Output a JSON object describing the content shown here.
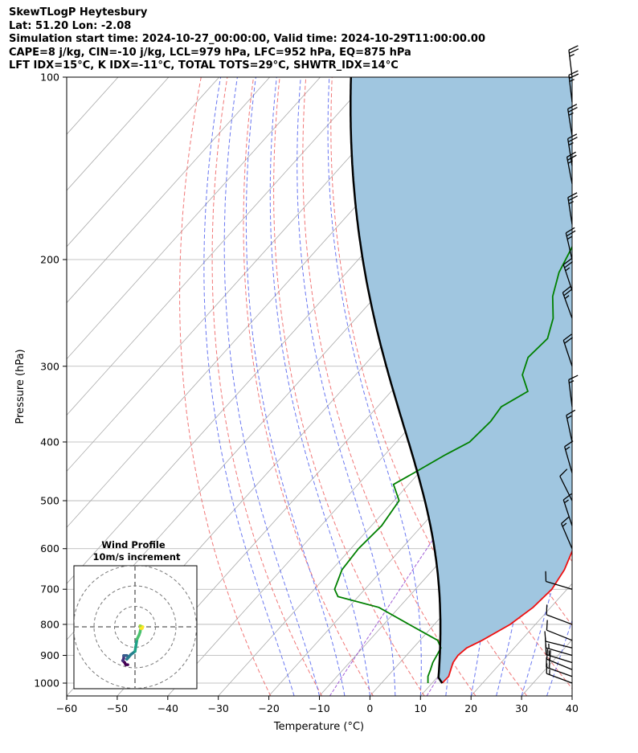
{
  "header": {
    "lines": [
      "SkewTLogP Heytesbury",
      "Lat: 51.20   Lon: -2.08",
      "Simulation start time: 2024-10-27_00:00:00, Valid time: 2024-10-29T11:00:00.00",
      "CAPE=8 j/kg, CIN=-10 j/kg, LCL=979 hPa, LFC=952 hPa, EQ=875 hPa",
      "LFT IDX=15°C, K IDX=-11°C, TOTAL TOTS=29°C, SHWTR_IDX=14°C"
    ]
  },
  "chart_data": {
    "type": "skewt",
    "xlabel": "Temperature (°C)",
    "ylabel": "Pressure (hPa)",
    "xlim": [
      -60,
      40
    ],
    "ylim": [
      1050,
      100
    ],
    "x_ticks": [
      -60,
      -50,
      -40,
      -30,
      -20,
      -10,
      0,
      10,
      20,
      30,
      40
    ],
    "x_tick_labels": [
      "−60",
      "−50",
      "−40",
      "−30",
      "−20",
      "−10",
      "0",
      "10",
      "20",
      "30",
      "40"
    ],
    "y_ticks": [
      1000,
      900,
      800,
      700,
      600,
      500,
      400,
      300,
      200,
      100
    ],
    "y_tick_labels": [
      "1000",
      "900",
      "800",
      "700",
      "600",
      "500",
      "400",
      "300",
      "200",
      "100"
    ],
    "grid": true,
    "series": [
      {
        "kind": "temperature",
        "color": "#ee1111",
        "points": [
          [
            1000,
            12.0
          ],
          [
            975,
            12.1
          ],
          [
            950,
            11.3
          ],
          [
            925,
            10.5
          ],
          [
            900,
            10.2
          ],
          [
            875,
            10.6
          ],
          [
            850,
            12.3
          ],
          [
            800,
            15.0
          ],
          [
            750,
            16.5
          ],
          [
            700,
            17.0
          ],
          [
            650,
            16.0
          ],
          [
            600,
            14.0
          ],
          [
            550,
            10.0
          ],
          [
            500,
            6.0
          ],
          [
            450,
            2.5
          ],
          [
            400,
            -1.5
          ],
          [
            350,
            -6.5
          ],
          [
            300,
            -12.0
          ],
          [
            250,
            -18.0
          ],
          [
            230,
            -21.0
          ],
          [
            210,
            -22.8
          ],
          [
            190,
            -25.5
          ],
          [
            180,
            -27.5
          ],
          [
            170,
            -28.5
          ],
          [
            160,
            -30.0
          ],
          [
            150,
            -33.0
          ],
          [
            140,
            -36.0
          ],
          [
            130,
            -39.0
          ],
          [
            120,
            -43.0
          ],
          [
            110,
            -47.0
          ],
          [
            100,
            -51.5
          ]
        ]
      },
      {
        "kind": "dewpoint",
        "color": "#008000",
        "points": [
          [
            1000,
            9.2
          ],
          [
            975,
            8.0
          ],
          [
            950,
            7.3
          ],
          [
            925,
            6.5
          ],
          [
            900,
            6.0
          ],
          [
            875,
            5.5
          ],
          [
            850,
            3.5
          ],
          [
            800,
            -5.0
          ],
          [
            750,
            -14.0
          ],
          [
            720,
            -24.0
          ],
          [
            700,
            -26.0
          ],
          [
            650,
            -28.0
          ],
          [
            600,
            -28.5
          ],
          [
            550,
            -28.0
          ],
          [
            500,
            -29.0
          ],
          [
            470,
            -33.0
          ],
          [
            450,
            -31.0
          ],
          [
            420,
            -28.0
          ],
          [
            400,
            -25.5
          ],
          [
            370,
            -25.0
          ],
          [
            350,
            -25.5
          ],
          [
            330,
            -23.0
          ],
          [
            310,
            -27.0
          ],
          [
            290,
            -29.0
          ],
          [
            270,
            -28.5
          ],
          [
            250,
            -31.0
          ],
          [
            230,
            -35.0
          ],
          [
            210,
            -38.0
          ],
          [
            190,
            -40.0
          ],
          [
            180,
            -41.5
          ],
          [
            170,
            -43.0
          ],
          [
            160,
            -45.0
          ],
          [
            150,
            -48.0
          ],
          [
            140,
            -52.0
          ],
          [
            135,
            -54.0
          ],
          [
            130,
            -55.0
          ],
          [
            120,
            -56.0
          ],
          [
            110,
            -58.0
          ],
          [
            100,
            -60.0
          ]
        ]
      },
      {
        "kind": "parcel",
        "color": "#000000"
      }
    ],
    "shaded_area": {
      "between": [
        "parcel",
        "temperature"
      ],
      "color": "#a0c6e0"
    },
    "background_lines": {
      "isotherms": {
        "color": "#aaaaaa",
        "from": -160,
        "to": 40,
        "step": 10
      },
      "dry_adiabats": {
        "color": "#ee5555",
        "theta": [
          250,
          260,
          270,
          280,
          290,
          300,
          310,
          320,
          330,
          340,
          350,
          360,
          370,
          380,
          390,
          400,
          410,
          420,
          430,
          440,
          450,
          460
        ]
      },
      "moist_adiabats": {
        "color": "#4455ee",
        "t_start": [
          -15,
          -10,
          -5,
          0,
          5,
          10,
          15,
          20,
          25,
          30,
          35,
          40
        ]
      },
      "mixing_ratio": {
        "color": "#8833cc",
        "g_per_kg": [
          0.002,
          0.008
        ]
      }
    },
    "wind_barbs": [
      [
        1000,
        16,
        -6
      ],
      [
        975,
        17,
        -6
      ],
      [
        950,
        17,
        -7
      ],
      [
        925,
        16,
        -5
      ],
      [
        900,
        14,
        -4
      ],
      [
        875,
        12,
        -3
      ],
      [
        850,
        10,
        -4
      ],
      [
        800,
        8,
        -3
      ],
      [
        700,
        10,
        -3
      ],
      [
        600,
        6,
        -14
      ],
      [
        550,
        4,
        -12
      ],
      [
        500,
        4,
        -8
      ],
      [
        450,
        4,
        -14
      ],
      [
        400,
        3,
        -14
      ],
      [
        350,
        2,
        -16
      ],
      [
        300,
        6,
        -18
      ],
      [
        250,
        8,
        -22
      ],
      [
        225,
        8,
        -24
      ],
      [
        200,
        6,
        -26
      ],
      [
        175,
        4,
        -26
      ],
      [
        150,
        5,
        -26
      ],
      [
        140,
        4,
        -25
      ],
      [
        125,
        4,
        -25
      ],
      [
        110,
        3,
        -25
      ],
      [
        100,
        3,
        -25
      ]
    ],
    "inset": {
      "title": "Wind Profile",
      "subtitle": "10m/s increment",
      "rings": [
        10,
        20,
        30
      ],
      "path_uv": [
        [
          -3.5,
          -18.5
        ],
        [
          -4.5,
          -18.5
        ],
        [
          -5.0,
          -17.5
        ],
        [
          -6.0,
          -16.5
        ],
        [
          -5.5,
          -15.5
        ],
        [
          -5.5,
          -14.0
        ],
        [
          -4.0,
          -14.0
        ],
        [
          -3.2,
          -14.8
        ],
        [
          -4.0,
          -15.8
        ],
        [
          -2.0,
          -13.5
        ],
        [
          0.0,
          -12.0
        ],
        [
          0.5,
          -9.0
        ],
        [
          1.0,
          -6.0
        ],
        [
          2.0,
          -4.0
        ],
        [
          2.5,
          -2.5
        ],
        [
          2.8,
          -0.5
        ],
        [
          2.5,
          0.5
        ],
        [
          3.8,
          0.0
        ],
        [
          3.5,
          -0.8
        ],
        [
          2.8,
          -0.8
        ]
      ]
    }
  }
}
